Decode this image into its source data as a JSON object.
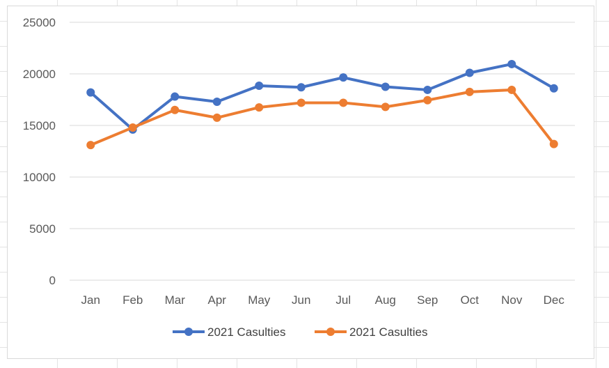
{
  "chart_data": {
    "type": "line",
    "categories": [
      "Jan",
      "Feb",
      "Mar",
      "Apr",
      "May",
      "Jun",
      "Jul",
      "Aug",
      "Sep",
      "Oct",
      "Nov",
      "Dec"
    ],
    "series": [
      {
        "name": "2021 Casulties",
        "color": "#4472c4",
        "values": [
          18200,
          14600,
          17800,
          17300,
          18850,
          18700,
          19650,
          18750,
          18450,
          20100,
          20950,
          18600
        ]
      },
      {
        "name": "2021 Casulties",
        "color": "#ed7d31",
        "values": [
          13100,
          14800,
          16500,
          15750,
          16750,
          17200,
          17200,
          16800,
          17450,
          18250,
          18450,
          13200
        ]
      }
    ],
    "title": "",
    "xlabel": "",
    "ylabel": "",
    "ylim": [
      0,
      25000
    ],
    "yticks": [
      0,
      5000,
      10000,
      15000,
      20000,
      25000
    ],
    "grid": "horizontal",
    "legend": "bottom"
  }
}
